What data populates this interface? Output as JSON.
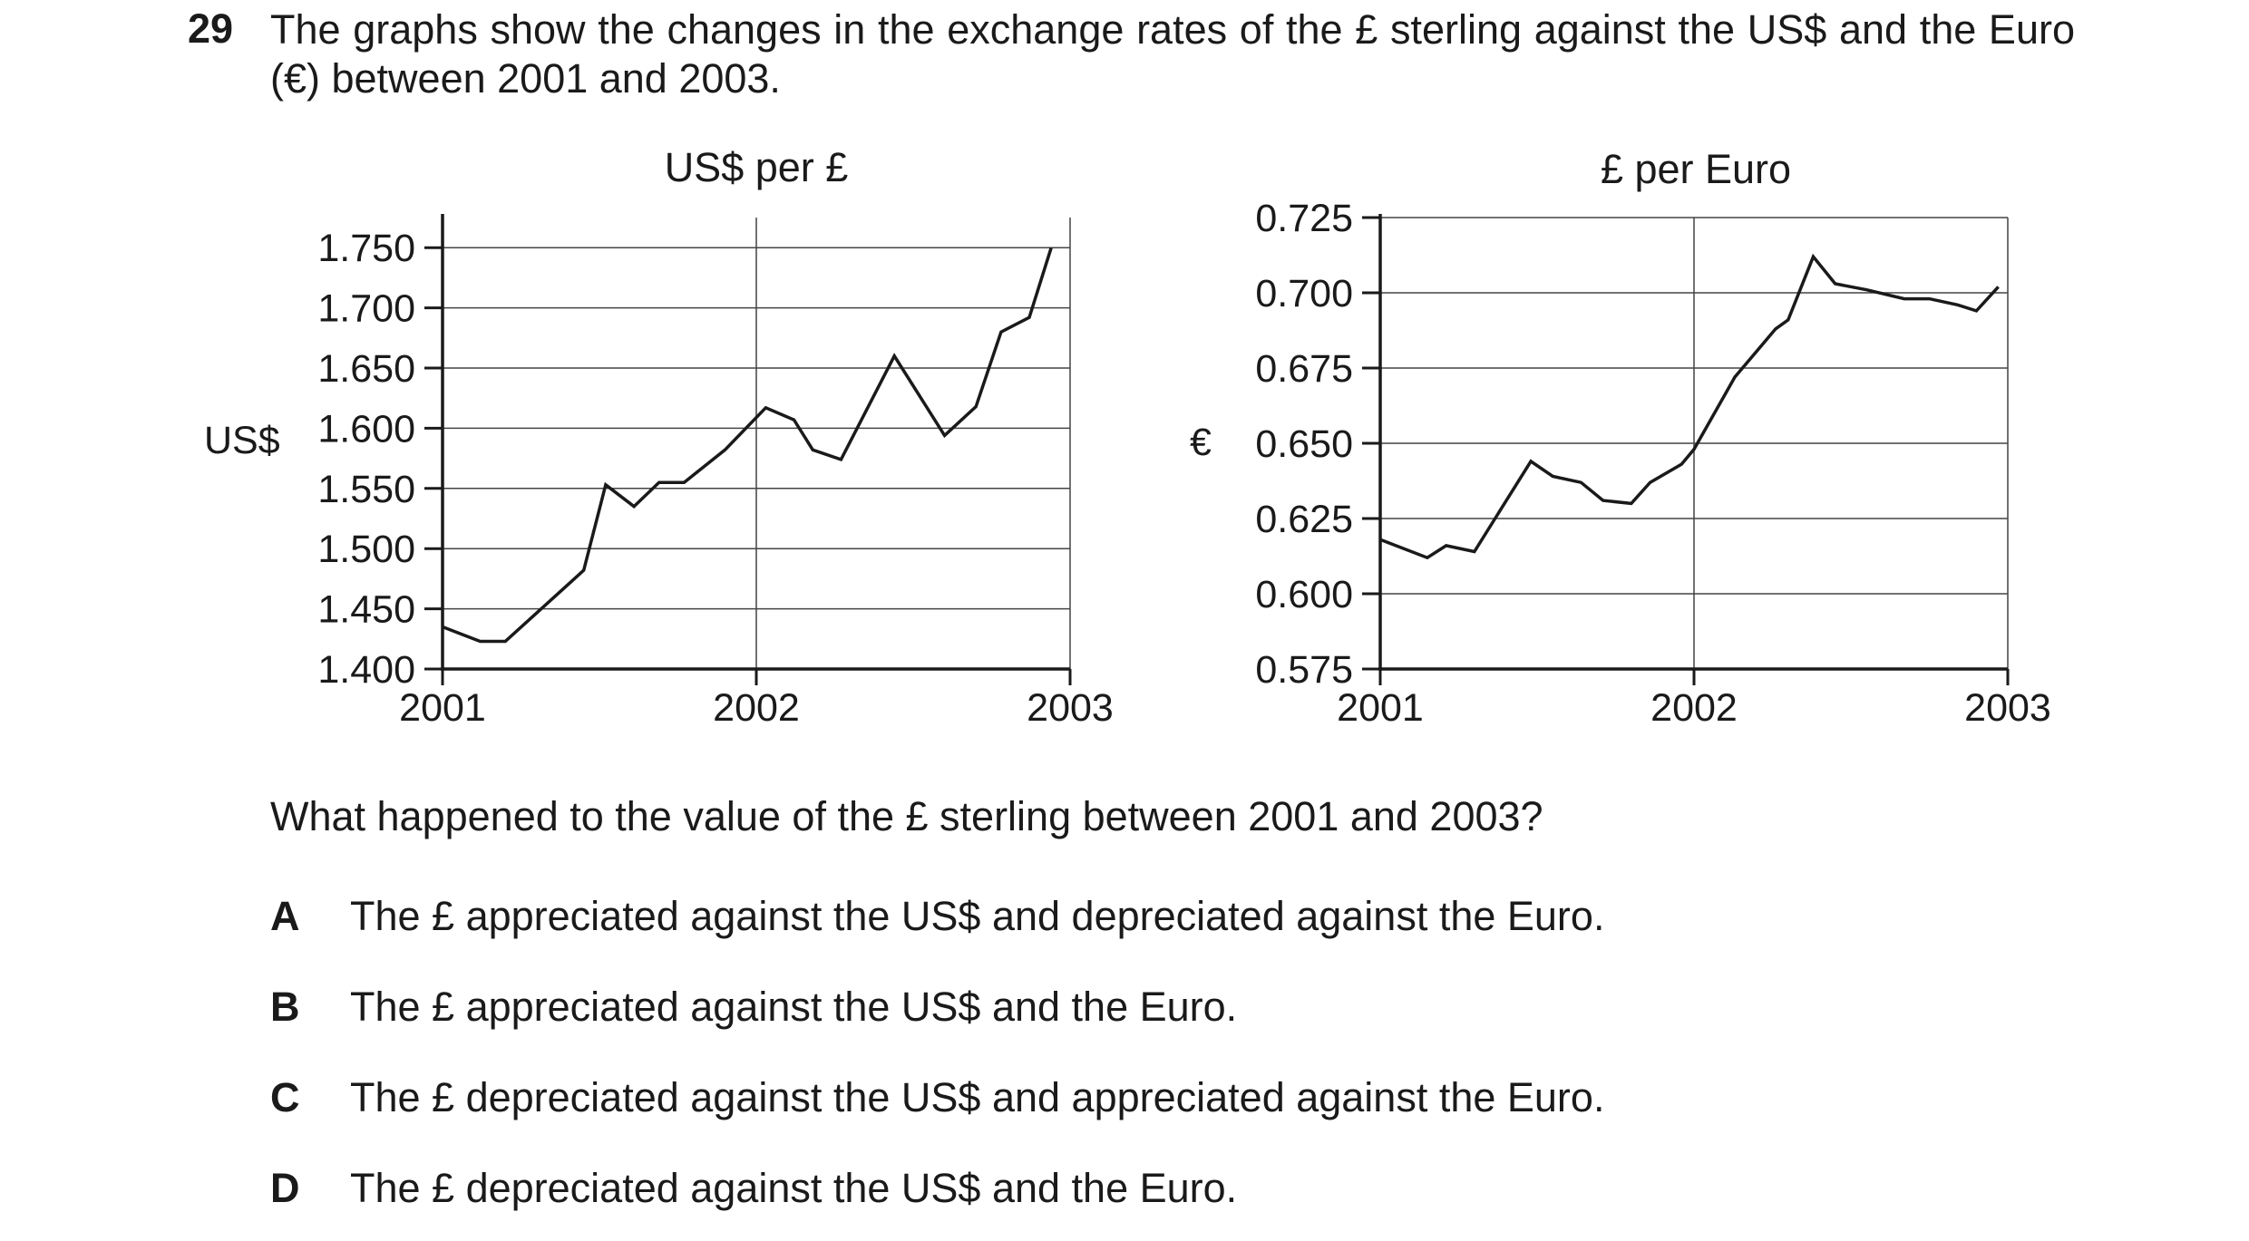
{
  "question": {
    "number": "29",
    "stem": "The graphs show the changes in the exchange rates of the £ sterling against the US$ and the Euro (€) between 2001 and 2003.",
    "prompt": "What happened to the value of the £ sterling between 2001 and 2003?",
    "options": [
      {
        "letter": "A",
        "text": "The £ appreciated against the US$ and depreciated against the Euro."
      },
      {
        "letter": "B",
        "text": "The £ appreciated against the US$ and the Euro."
      },
      {
        "letter": "C",
        "text": "The £ depreciated against the US$ and appreciated against the Euro."
      },
      {
        "letter": "D",
        "text": "The £ depreciated against the US$ and the Euro."
      }
    ]
  },
  "chart_data": [
    {
      "type": "line",
      "title": "US$ per £",
      "ylabel": "US$",
      "xlabel": "",
      "xticks": [
        "2001",
        "2002",
        "2003"
      ],
      "xlim": [
        2001,
        2003
      ],
      "yticks": [
        "1.400",
        "1.450",
        "1.500",
        "1.550",
        "1.600",
        "1.650",
        "1.700",
        "1.750"
      ],
      "ylim": [
        1.4,
        1.775
      ],
      "grid": true,
      "series": [
        {
          "x": [
            2001.0,
            2001.12,
            2001.2,
            2001.45,
            2001.52,
            2001.61,
            2001.69,
            2001.77,
            2001.9,
            2002.03,
            2002.12,
            2002.18,
            2002.27,
            2002.44,
            2002.6,
            2002.7,
            2002.78,
            2002.87,
            2002.94
          ],
          "y": [
            1.435,
            1.423,
            1.423,
            1.482,
            1.553,
            1.535,
            1.555,
            1.555,
            1.582,
            1.617,
            1.607,
            1.582,
            1.574,
            1.66,
            1.594,
            1.618,
            1.68,
            1.692,
            1.75
          ]
        }
      ]
    },
    {
      "type": "line",
      "title": "£ per Euro",
      "ylabel": "€",
      "xlabel": "",
      "xticks": [
        "2001",
        "2002",
        "2003"
      ],
      "xlim": [
        2001,
        2003
      ],
      "yticks": [
        "0.575",
        "0.600",
        "0.625",
        "0.650",
        "0.675",
        "0.700",
        "0.725"
      ],
      "ylim": [
        0.575,
        0.725
      ],
      "grid": true,
      "series": [
        {
          "x": [
            2001.0,
            2001.15,
            2001.21,
            2001.3,
            2001.48,
            2001.55,
            2001.64,
            2001.71,
            2001.8,
            2001.86,
            2001.96,
            2002.0,
            2002.13,
            2002.26,
            2002.3,
            2002.38,
            2002.45,
            2002.55,
            2002.67,
            2002.75,
            2002.84,
            2002.9,
            2002.97
          ],
          "y": [
            0.618,
            0.612,
            0.616,
            0.614,
            0.644,
            0.639,
            0.637,
            0.631,
            0.63,
            0.637,
            0.643,
            0.648,
            0.672,
            0.688,
            0.691,
            0.712,
            0.703,
            0.701,
            0.698,
            0.698,
            0.696,
            0.694,
            0.702
          ]
        }
      ]
    }
  ]
}
